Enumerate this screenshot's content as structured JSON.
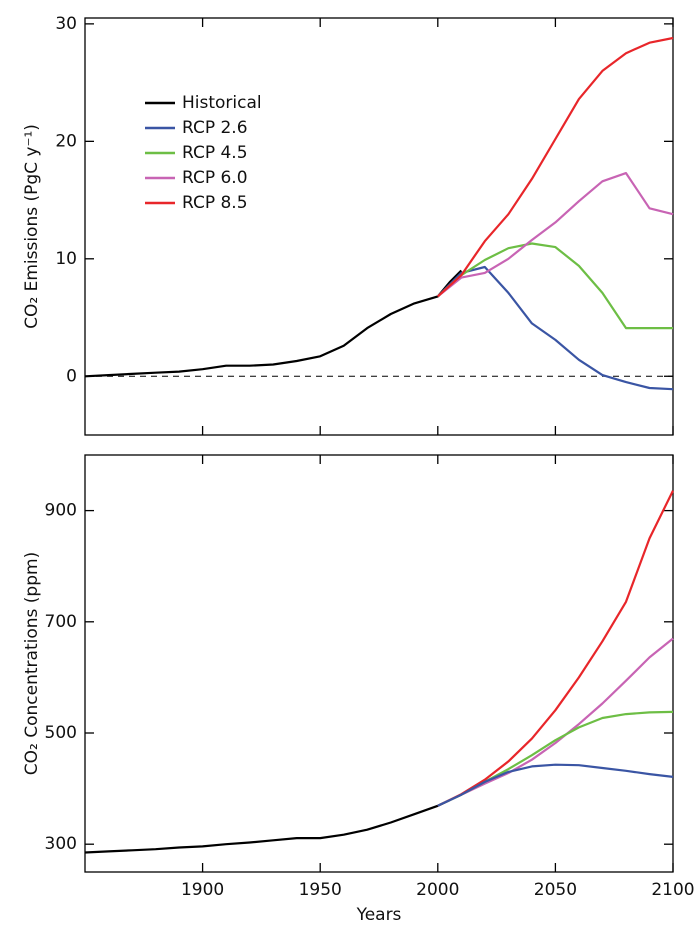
{
  "chart_data": [
    {
      "type": "line",
      "ylabel": "CO₂ Emissions (PgC y⁻¹)",
      "xlim": [
        1850,
        2100
      ],
      "ylim": [
        -5,
        30.5
      ],
      "xticks": [
        1900,
        1950,
        2000,
        2050,
        2100
      ],
      "yticks": [
        0,
        10,
        20,
        30
      ],
      "hlines": [
        0
      ],
      "legend": "upper left",
      "series": [
        {
          "name": "Historical",
          "color": "#000000",
          "x": [
            1850,
            1860,
            1870,
            1880,
            1890,
            1900,
            1910,
            1920,
            1930,
            1940,
            1950,
            1960,
            1970,
            1980,
            1990,
            2000,
            2005,
            2010
          ],
          "values": [
            0,
            0.1,
            0.2,
            0.3,
            0.4,
            0.6,
            0.9,
            0.9,
            1.0,
            1.3,
            1.7,
            2.6,
            4.1,
            5.3,
            6.2,
            6.8,
            8.0,
            9.0
          ]
        },
        {
          "name": "RCP 2.6",
          "color": "#3a55a4",
          "x": [
            2000,
            2010,
            2020,
            2030,
            2040,
            2050,
            2060,
            2070,
            2080,
            2090,
            2100
          ],
          "values": [
            6.8,
            8.8,
            9.3,
            7.1,
            4.5,
            3.1,
            1.4,
            0.1,
            -0.5,
            -1.0,
            -1.1
          ]
        },
        {
          "name": "RCP 4.5",
          "color": "#6dbe45",
          "x": [
            2000,
            2010,
            2020,
            2030,
            2040,
            2050,
            2060,
            2070,
            2080,
            2090,
            2100
          ],
          "values": [
            6.8,
            8.6,
            9.9,
            10.9,
            11.3,
            11.0,
            9.4,
            7.1,
            4.1,
            4.1,
            4.1
          ]
        },
        {
          "name": "RCP 6.0",
          "color": "#c864b4",
          "x": [
            2000,
            2010,
            2020,
            2030,
            2040,
            2050,
            2060,
            2070,
            2080,
            2090,
            2100
          ],
          "values": [
            6.8,
            8.4,
            8.8,
            10.0,
            11.6,
            13.1,
            14.9,
            16.6,
            17.3,
            14.3,
            13.8
          ]
        },
        {
          "name": "RCP 8.5",
          "color": "#e8262a",
          "x": [
            2000,
            2010,
            2020,
            2030,
            2040,
            2050,
            2060,
            2070,
            2080,
            2090,
            2100
          ],
          "values": [
            6.8,
            8.6,
            11.5,
            13.8,
            16.8,
            20.2,
            23.6,
            26.0,
            27.5,
            28.4,
            28.8
          ]
        }
      ]
    },
    {
      "type": "line",
      "ylabel": "CO₂ Concentrations (ppm)",
      "xlabel": "Years",
      "xlim": [
        1850,
        2100
      ],
      "ylim": [
        250,
        1000
      ],
      "xticks": [
        1900,
        1950,
        2000,
        2050,
        2100
      ],
      "yticks": [
        300,
        500,
        700,
        900
      ],
      "series": [
        {
          "color": "#000000",
          "x": [
            1850,
            1860,
            1870,
            1880,
            1890,
            1900,
            1910,
            1920,
            1930,
            1940,
            1950,
            1960,
            1970,
            1980,
            1990,
            2000,
            2005
          ],
          "values": [
            285,
            287,
            289,
            291,
            294,
            296,
            300,
            303,
            307,
            311,
            311,
            317,
            326,
            339,
            354,
            369,
            379
          ]
        },
        {
          "color": "#c864b4",
          "x": [
            2000,
            2010,
            2020,
            2030,
            2040,
            2050,
            2060,
            2070,
            2080,
            2090,
            2100
          ],
          "values": [
            369,
            389,
            409,
            428,
            452,
            482,
            516,
            553,
            594,
            636,
            670
          ]
        },
        {
          "color": "#6dbe45",
          "x": [
            2000,
            2010,
            2020,
            2030,
            2040,
            2050,
            2060,
            2070,
            2080,
            2090,
            2100
          ],
          "values": [
            369,
            389,
            412,
            435,
            460,
            487,
            510,
            527,
            534,
            537,
            538
          ]
        },
        {
          "color": "#e8262a",
          "x": [
            2000,
            2010,
            2020,
            2030,
            2040,
            2050,
            2060,
            2070,
            2080,
            2090,
            2100
          ],
          "values": [
            369,
            390,
            416,
            449,
            490,
            541,
            600,
            665,
            736,
            850,
            936
          ]
        },
        {
          "color": "#3a55a4",
          "x": [
            2000,
            2010,
            2020,
            2030,
            2040,
            2050,
            2060,
            2070,
            2080,
            2090,
            2100
          ],
          "values": [
            369,
            389,
            412,
            430,
            440,
            443,
            442,
            437,
            432,
            426,
            421
          ]
        }
      ]
    }
  ]
}
